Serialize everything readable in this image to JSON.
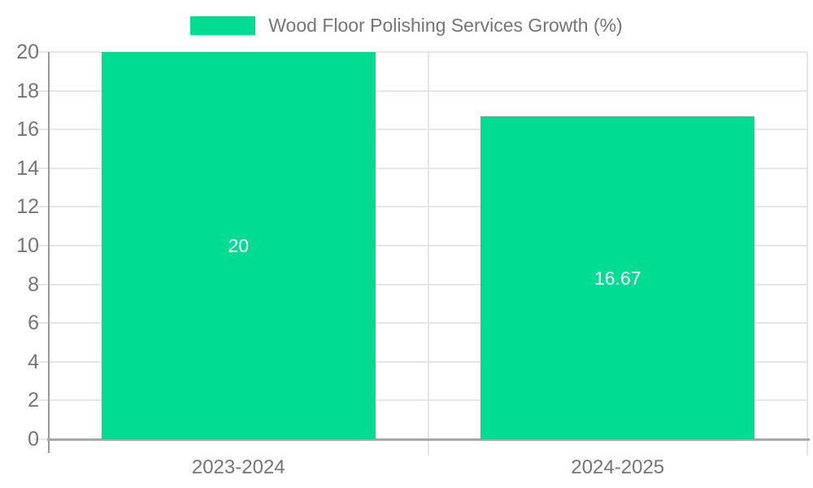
{
  "legend": {
    "label": "Wood Floor Polishing Services Growth (%)"
  },
  "colors": {
    "bar": "#00DD92",
    "grid": "#e6e6e6",
    "axis_line": "#999999",
    "baseline": "#a8a8a8",
    "tick_text": "#757575",
    "value_text": "#ffffff",
    "background": "#ffffff"
  },
  "chart_data": {
    "type": "bar",
    "title": "",
    "categories": [
      "2023-2024",
      "2024-2025"
    ],
    "values": [
      20,
      16.67
    ],
    "value_labels": [
      "20",
      "16.67"
    ],
    "series": [
      {
        "name": "Wood Floor Polishing Services Growth (%)",
        "values": [
          20,
          16.67
        ]
      }
    ],
    "xlabel": "",
    "ylabel": "",
    "ylim": [
      0,
      20
    ],
    "ytick_step": 2,
    "ytick_labels": [
      "0",
      "2",
      "4",
      "6",
      "8",
      "10",
      "12",
      "14",
      "16",
      "18",
      "20"
    ],
    "grid": true,
    "legend_position": "top-center"
  }
}
